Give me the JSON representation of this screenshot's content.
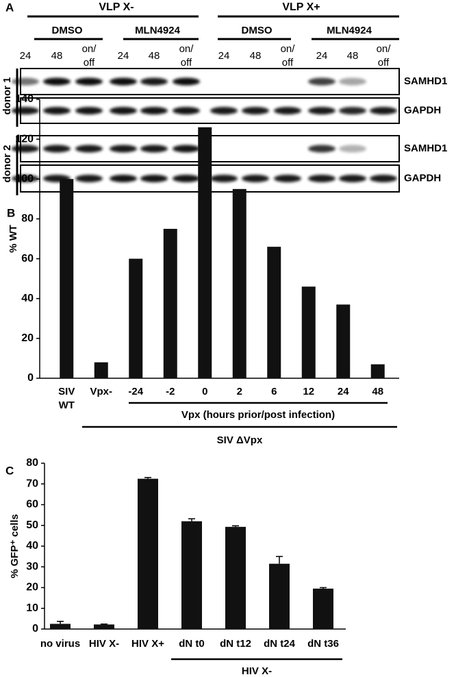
{
  "panel_a": {
    "label": "A",
    "groups": [
      {
        "label": "VLP X-",
        "treatments": [
          {
            "label": "DMSO",
            "lanes": [
              [
                "24"
              ],
              [
                "48"
              ],
              [
                "on/",
                "off"
              ]
            ]
          },
          {
            "label": "MLN4924",
            "lanes": [
              [
                "24"
              ],
              [
                "48"
              ],
              [
                "on/",
                "off"
              ]
            ]
          }
        ]
      },
      {
        "label": "VLP X+",
        "treatments": [
          {
            "label": "DMSO",
            "lanes": [
              [
                "24"
              ],
              [
                "48"
              ],
              [
                "on/",
                "off"
              ]
            ]
          },
          {
            "label": "MLN4924",
            "lanes": [
              [
                "24"
              ],
              [
                "48"
              ],
              [
                "on/",
                "off"
              ]
            ]
          }
        ]
      }
    ],
    "donors": [
      {
        "label": "donor 1",
        "rows": [
          "SAMHD1",
          "GAPDH"
        ]
      },
      {
        "label": "donor 2",
        "rows": [
          "SAMHD1",
          "GAPDH"
        ]
      }
    ]
  },
  "chart_data": [
    {
      "type": "bar",
      "panel_label": "B",
      "ylabel": "% WT",
      "categories": [
        "SIV WT",
        "Vpx-",
        "-24",
        "-2",
        "0",
        "2",
        "6",
        "12",
        "24",
        "48"
      ],
      "values": [
        100,
        8,
        60,
        75,
        126,
        95,
        66,
        46,
        37,
        7
      ],
      "color": "#111111",
      "ylim": [
        0,
        140
      ],
      "yticks": [
        0,
        20,
        40,
        60,
        80,
        100,
        120,
        140
      ],
      "annotations": [
        "Vpx (hours prior/post infection)",
        "SIV ΔVpx"
      ]
    },
    {
      "type": "bar",
      "panel_label": "C",
      "ylabel": "% GFP⁺ cells",
      "categories": [
        "no virus",
        "HIV X-",
        "HIV X+",
        "dN t0",
        "dN t12",
        "dN t24",
        "dN t36"
      ],
      "values": [
        2.5,
        2.2,
        72.5,
        52,
        49.3,
        31.5,
        19.5
      ],
      "errors": [
        1.2,
        0.2,
        0.6,
        1.2,
        0.5,
        3.5,
        0.5
      ],
      "color": "#111111",
      "ylim": [
        0,
        80
      ],
      "yticks": [
        0,
        10,
        20,
        30,
        40,
        50,
        60,
        70,
        80
      ],
      "annotations": [
        "HIV X-"
      ]
    }
  ]
}
